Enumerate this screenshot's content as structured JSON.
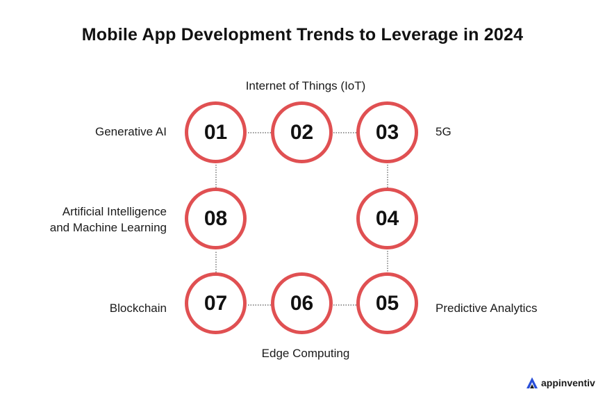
{
  "title": "Mobile App Development Trends to Leverage in 2024",
  "nodes": [
    {
      "number": "01",
      "label": "Generative AI"
    },
    {
      "number": "02",
      "label": "Internet of Things (IoT)"
    },
    {
      "number": "03",
      "label": "5G"
    },
    {
      "number": "04",
      "label": ""
    },
    {
      "number": "05",
      "label": "Predictive Analytics"
    },
    {
      "number": "06",
      "label": "Edge Computing"
    },
    {
      "number": "07",
      "label": "Blockchain"
    },
    {
      "number": "08",
      "label_line1": "Artificial Intelligence",
      "label_line2": "and Machine Learning"
    }
  ],
  "brand": {
    "name": "appinventiv",
    "logo_icon": "appinventiv-logo-icon"
  },
  "colors": {
    "ring": "#e05052",
    "connector": "#444444",
    "logo": "#2a4fd8"
  }
}
